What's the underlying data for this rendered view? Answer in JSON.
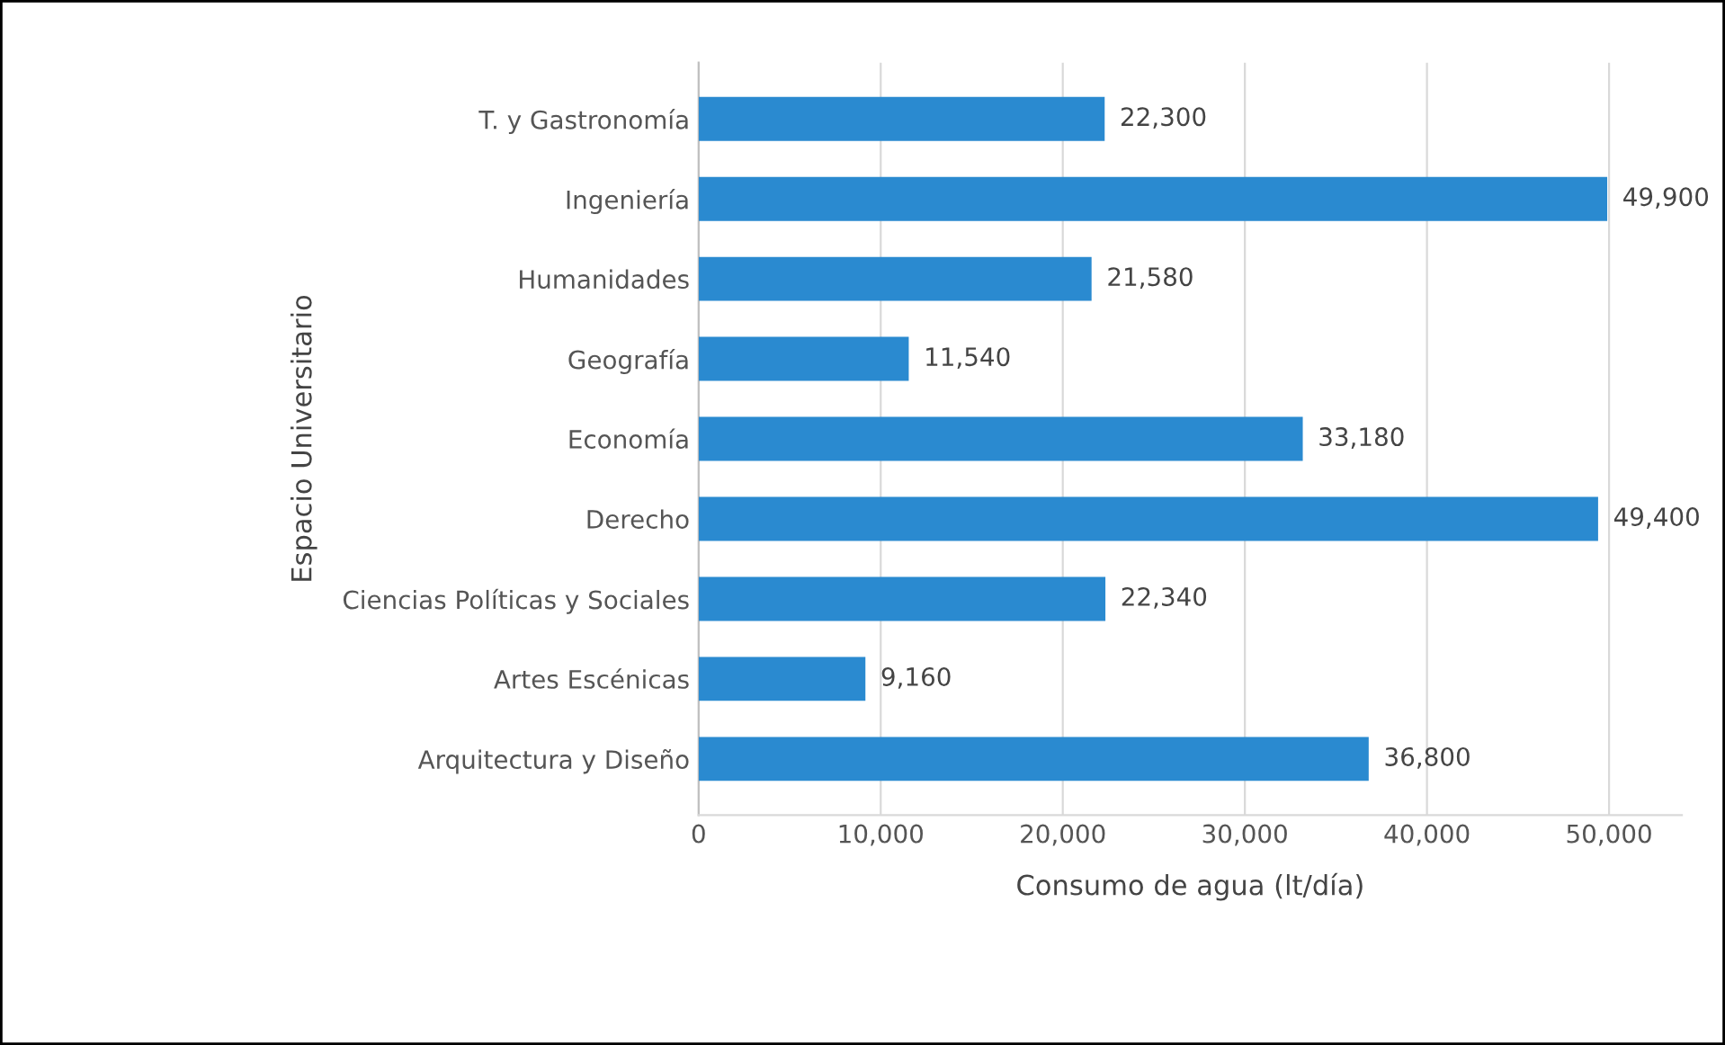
{
  "chart_data": {
    "type": "bar",
    "orientation": "horizontal",
    "categories": [
      "T. y Gastronomía",
      "Ingeniería",
      "Humanidades",
      "Geografía",
      "Economía",
      "Derecho",
      "Ciencias Políticas y Sociales",
      "Artes Escénicas",
      "Arquitectura y Diseño"
    ],
    "values": [
      22300,
      49900,
      21580,
      11540,
      33180,
      49400,
      22340,
      9160,
      36800
    ],
    "value_labels": [
      "22,300",
      "49,900",
      "21,580",
      "11,540",
      "33,180",
      "49,400",
      "22,340",
      "9,160",
      "36,800"
    ],
    "color": "#2a8ad0",
    "xlim": [
      0,
      54000
    ],
    "xticks": [
      0,
      {
        "value": 10000,
        "label": "10,000"
      },
      {
        "value": 20000,
        "label": "20,000"
      },
      {
        "value": 30000,
        "label": "30,000"
      },
      {
        "value": 40000,
        "label": "40,000"
      },
      {
        "value": 50000,
        "label": "50,000"
      }
    ],
    "xlabel": "Consumo de agua (lt/día)",
    "ylabel": "Espacio Universitario",
    "grid": "x"
  }
}
